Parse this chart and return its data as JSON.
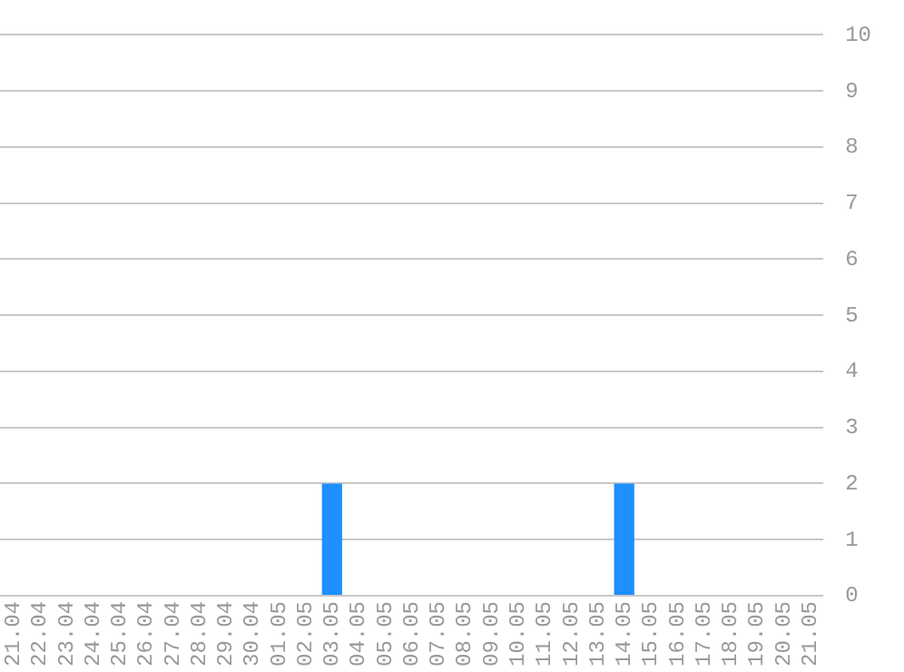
{
  "chart_data": {
    "type": "bar",
    "categories": [
      "21.04",
      "22.04",
      "23.04",
      "24.04",
      "25.04",
      "26.04",
      "27.04",
      "28.04",
      "29.04",
      "30.04",
      "01.05",
      "02.05",
      "03.05",
      "04.05",
      "05.05",
      "06.05",
      "07.05",
      "08.05",
      "09.05",
      "10.05",
      "11.05",
      "12.05",
      "13.05",
      "14.05",
      "15.05",
      "16.05",
      "17.05",
      "18.05",
      "19.05",
      "20.05",
      "21.05"
    ],
    "values": [
      0,
      0,
      0,
      0,
      0,
      0,
      0,
      0,
      0,
      0,
      0,
      0,
      2,
      0,
      0,
      0,
      0,
      0,
      0,
      0,
      0,
      0,
      0,
      2,
      0,
      0,
      0,
      0,
      0,
      0,
      0
    ],
    "color": "#1e90ff",
    "ylim": [
      0,
      10
    ],
    "yticks": [
      0,
      1,
      2,
      3,
      4,
      5,
      6,
      7,
      8,
      9,
      10
    ],
    "grid": "y",
    "legend": false
  }
}
